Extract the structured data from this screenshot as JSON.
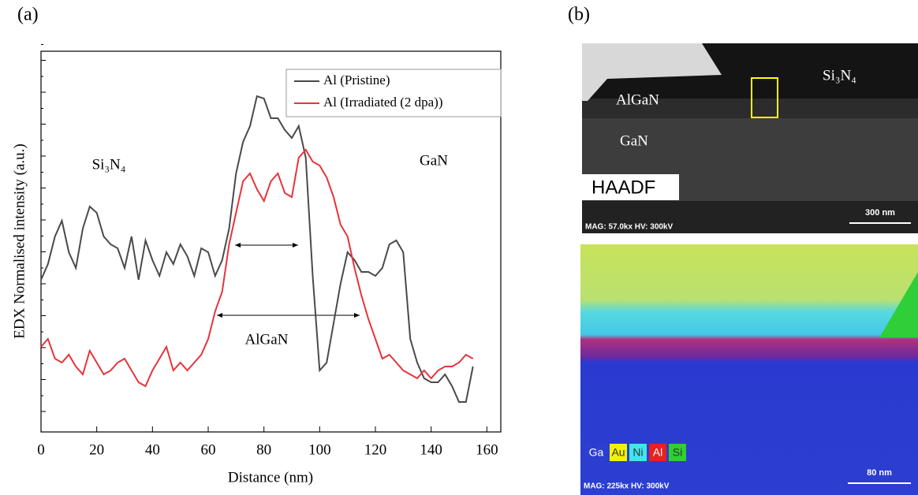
{
  "panel_labels": [
    "(a)",
    "(b)"
  ],
  "chart_data": {
    "type": "line",
    "xlabel": "Distance (nm)",
    "ylabel": "EDX Normalised intensity (a.u.)",
    "x": [
      0,
      2.5,
      5,
      7.5,
      10,
      12.5,
      15,
      17.5,
      20,
      22.5,
      25,
      27.5,
      30,
      32.5,
      35,
      37.5,
      40,
      42.5,
      45,
      47.5,
      50,
      52.5,
      55,
      57.5,
      60,
      62.5,
      65,
      67.5,
      70,
      72.5,
      75,
      77.5,
      80,
      82.5,
      85,
      87.5,
      90,
      92.5,
      95,
      97.5,
      100,
      102.5,
      105,
      107.5,
      110,
      112.5,
      115,
      117.5,
      120,
      122.5,
      125,
      127.5,
      130,
      132.5,
      135,
      137.5,
      140,
      142.5,
      145,
      147.5,
      150,
      152.5,
      155
    ],
    "series": [
      {
        "name": "Al (Pristine)",
        "color": "#4a4a4a",
        "values": [
          193,
          213,
          248,
          268,
          228,
          208,
          258,
          286,
          278,
          248,
          238,
          233,
          208,
          248,
          193,
          243,
          218,
          198,
          228,
          213,
          238,
          223,
          198,
          233,
          228,
          198,
          218,
          258,
          328,
          368,
          388,
          426,
          423,
          398,
          398,
          383,
          373,
          388,
          348,
          198,
          78,
          88,
          138,
          188,
          228,
          218,
          203,
          203,
          198,
          208,
          238,
          243,
          228,
          118,
          88,
          68,
          63,
          63,
          73,
          58,
          38,
          38,
          83
        ]
      },
      {
        "name": "Al (Irradiated (2 dpa))",
        "color": "#e8333a",
        "values": [
          108,
          118,
          93,
          88,
          98,
          83,
          73,
          103,
          88,
          73,
          78,
          88,
          93,
          78,
          63,
          58,
          78,
          93,
          108,
          78,
          88,
          78,
          88,
          98,
          118,
          153,
          178,
          238,
          278,
          318,
          328,
          308,
          293,
          318,
          328,
          303,
          298,
          348,
          358,
          343,
          338,
          323,
          298,
          263,
          248,
          208,
          173,
          143,
          118,
          93,
          98,
          88,
          78,
          73,
          68,
          78,
          68,
          78,
          83,
          83,
          88,
          98,
          93
        ]
      }
    ],
    "xlim": [
      0,
      165
    ],
    "xticks": [
      0,
      20,
      40,
      60,
      80,
      100,
      120,
      140,
      160
    ],
    "ylim": [
      0,
      483
    ],
    "annotations": [
      "Si₃N₄",
      "GaN",
      "AlGaN"
    ]
  },
  "haadf": {
    "labels": [
      "AlGaN",
      "GaN",
      "Si₃N₄"
    ],
    "mode": "HAADF",
    "info": "MAG: 57.0kx  HV: 300kV",
    "scale": "300 nm"
  },
  "edx_map": {
    "elements": [
      "Ga",
      "Au",
      "Ni",
      "Al",
      "Si"
    ],
    "info": "MAG: 225kx  HV: 300kV",
    "scale": "80 nm"
  }
}
